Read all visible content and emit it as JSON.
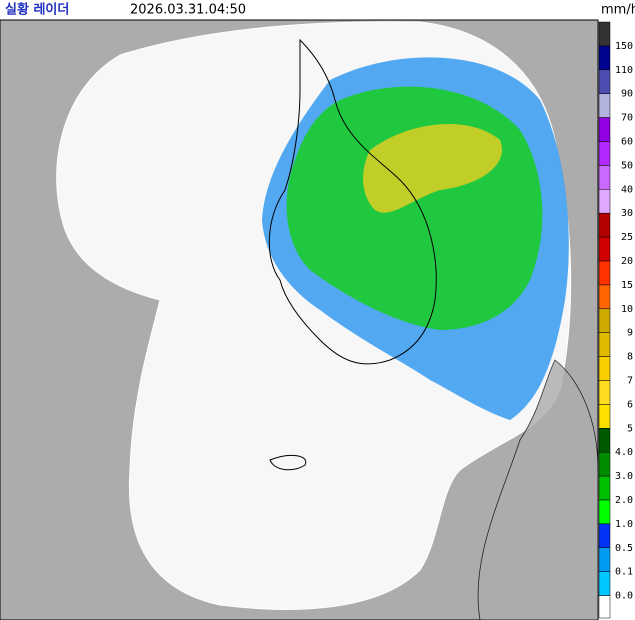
{
  "header": {
    "title": "실황 레이더",
    "timestamp": "2026.03.31.04:50",
    "unit": "mm/h"
  },
  "legend": {
    "items": [
      {
        "label": "150",
        "color": "#333333"
      },
      {
        "label": "110",
        "color": "#000390"
      },
      {
        "label": "90",
        "color": "#4c4eb1"
      },
      {
        "label": "70",
        "color": "#b3b4de"
      },
      {
        "label": "60",
        "color": "#9300e4"
      },
      {
        "label": "50",
        "color": "#b329ff"
      },
      {
        "label": "40",
        "color": "#c969ff"
      },
      {
        "label": "30",
        "color": "#e0a9ff"
      },
      {
        "label": "25",
        "color": "#b40000"
      },
      {
        "label": "20",
        "color": "#d20000"
      },
      {
        "label": "15",
        "color": "#ff3200"
      },
      {
        "label": "10",
        "color": "#ff6600"
      },
      {
        "label": "9",
        "color": "#ccaa00"
      },
      {
        "label": "8",
        "color": "#e0b900"
      },
      {
        "label": "7",
        "color": "#f9cd00"
      },
      {
        "label": "6",
        "color": "#ffdc1f"
      },
      {
        "label": "5",
        "color": "#ffe100"
      },
      {
        "label": "4.0",
        "color": "#005a00"
      },
      {
        "label": "3.0",
        "color": "#008c00"
      },
      {
        "label": "2.0",
        "color": "#00be00"
      },
      {
        "label": "1.0",
        "color": "#00ff00"
      },
      {
        "label": "0.5",
        "color": "#0033f5"
      },
      {
        "label": "0.1",
        "color": "#009bf5"
      },
      {
        "label": "0.0",
        "color": "#00c8ff"
      }
    ],
    "below_color": "#ffffff"
  }
}
